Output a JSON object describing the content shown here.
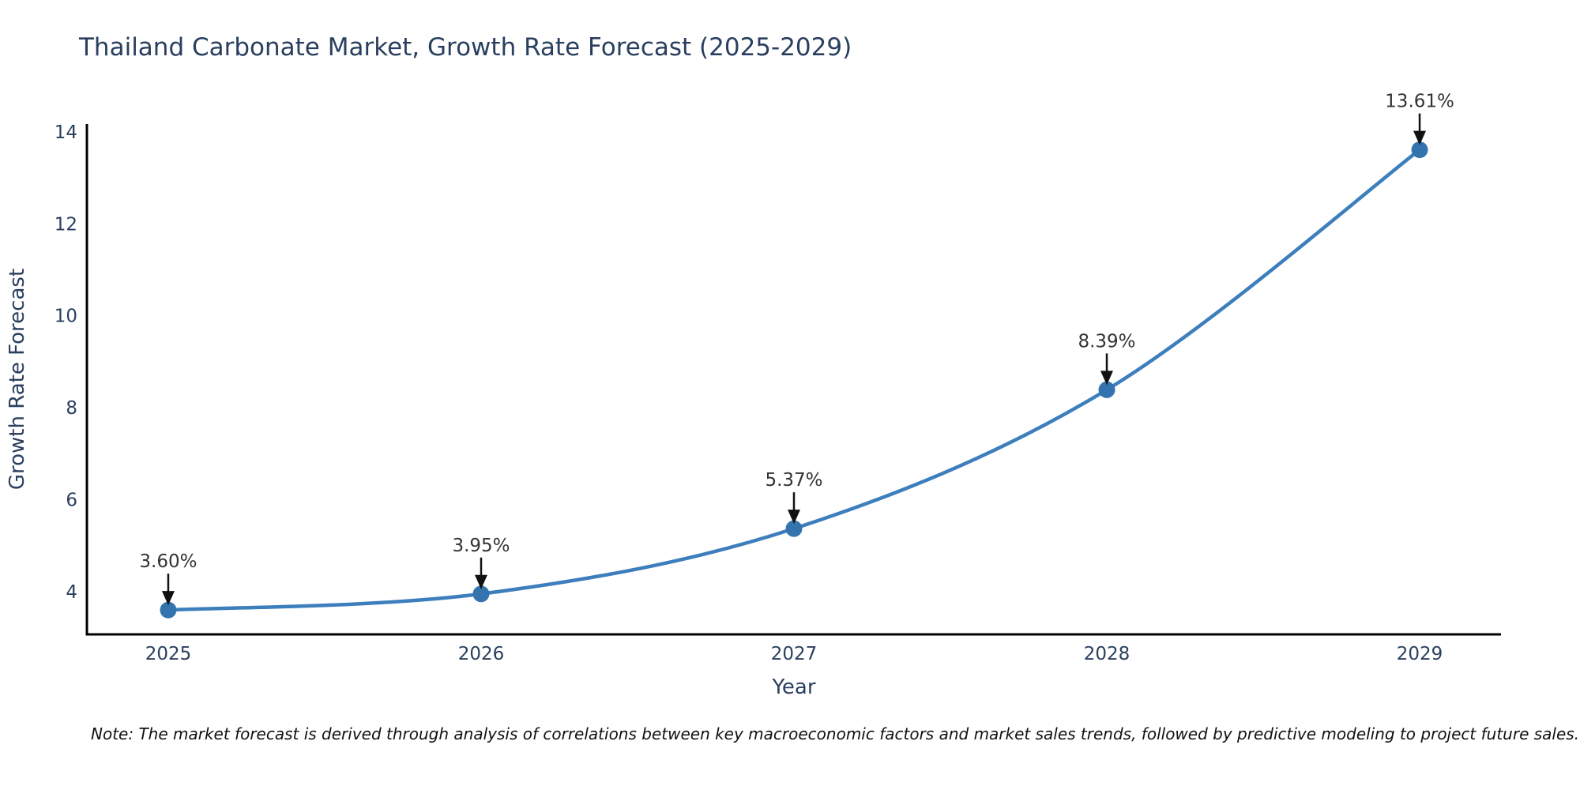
{
  "title": "Thailand Carbonate Market, Growth Rate Forecast (2025-2029)",
  "note": "Note: The market forecast is derived through analysis of correlations between key macroeconomic factors and market sales trends, followed by predictive modeling to project future sales.",
  "colors": {
    "line": "#3d7ebd",
    "marker": "#3474ae",
    "axis": "#000000",
    "text": "#2a3f5f",
    "annotation": "#111111"
  },
  "chart_data": {
    "type": "line",
    "title": "Thailand Carbonate Market, Growth Rate Forecast (2025-2029)",
    "xlabel": "Year",
    "ylabel": "Growth Rate Forecast",
    "x": [
      2025,
      2026,
      2027,
      2028,
      2029
    ],
    "values": [
      3.6,
      3.95,
      5.37,
      8.39,
      13.61
    ],
    "labels": [
      "3.60%",
      "3.95%",
      "5.37%",
      "8.39%",
      "13.61%"
    ],
    "xticks": [
      2025,
      2026,
      2027,
      2028,
      2029
    ],
    "yticks": [
      4,
      6,
      8,
      10,
      12,
      14
    ],
    "xlim": [
      2024.74,
      2029.26
    ],
    "ylim": [
      3.07,
      14.17
    ],
    "grid": false,
    "legend": "none",
    "line_shape": "spline",
    "marker": "circle",
    "annotation_style": "black-arrow-down-to-point"
  }
}
